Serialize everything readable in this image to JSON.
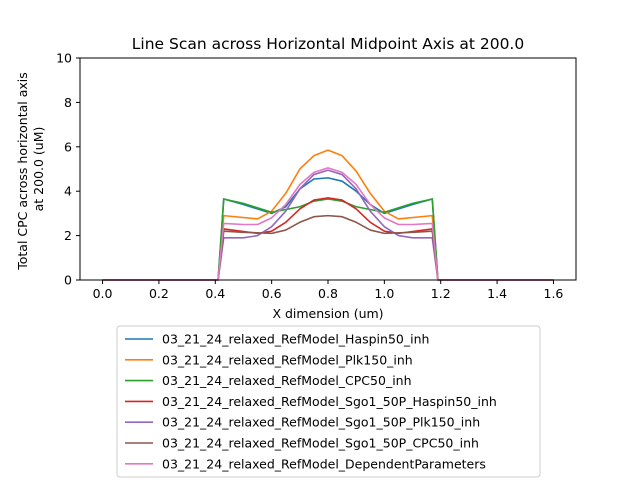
{
  "chart_data": {
    "type": "line",
    "title": "Line Scan across Horizontal Midpoint Axis at 200.0",
    "xlabel": "X dimension (um)",
    "ylabel_lines": [
      "Total CPC across horizontal axis",
      "at 200.0 (uM)"
    ],
    "xlim": [
      -0.08,
      1.68
    ],
    "ylim": [
      0,
      10
    ],
    "xticks": [
      0.0,
      0.2,
      0.4,
      0.6,
      0.8,
      1.0,
      1.2,
      1.4,
      1.6
    ],
    "xtick_labels": [
      "0.0",
      "0.2",
      "0.4",
      "0.6",
      "0.8",
      "1.0",
      "1.2",
      "1.4",
      "1.6"
    ],
    "yticks": [
      0,
      2,
      4,
      6,
      8,
      10
    ],
    "ytick_labels": [
      "0",
      "2",
      "4",
      "6",
      "8",
      "10"
    ],
    "grid": false,
    "legend_placement": "below",
    "series": [
      {
        "name": "03_21_24_relaxed_RefModel_Haspin50_inh",
        "color": "#1f77b4",
        "x": [
          0.0,
          0.41,
          0.43,
          0.5,
          0.6,
          0.65,
          0.7,
          0.75,
          0.8,
          0.85,
          0.9,
          0.95,
          1.0,
          1.1,
          1.17,
          1.19,
          1.6
        ],
        "y": [
          0,
          0,
          3.65,
          3.4,
          3.0,
          3.3,
          4.1,
          4.55,
          4.6,
          4.45,
          4.0,
          3.4,
          3.0,
          3.4,
          3.65,
          0,
          0
        ]
      },
      {
        "name": "03_21_24_relaxed_RefModel_Plk150_inh",
        "color": "#ff7f0e",
        "x": [
          0.0,
          0.41,
          0.43,
          0.55,
          0.6,
          0.65,
          0.7,
          0.75,
          0.8,
          0.85,
          0.9,
          0.95,
          1.0,
          1.05,
          1.17,
          1.19,
          1.6
        ],
        "y": [
          0,
          0,
          2.9,
          2.75,
          3.1,
          3.9,
          5.0,
          5.6,
          5.85,
          5.6,
          4.9,
          3.9,
          3.1,
          2.75,
          2.9,
          0,
          0
        ]
      },
      {
        "name": "03_21_24_relaxed_RefModel_CPC50_inh",
        "color": "#2ca02c",
        "x": [
          0.0,
          0.41,
          0.43,
          0.5,
          0.6,
          0.7,
          0.75,
          0.8,
          0.85,
          0.9,
          1.0,
          1.1,
          1.17,
          1.19,
          1.6
        ],
        "y": [
          0,
          0,
          3.65,
          3.45,
          3.05,
          3.3,
          3.55,
          3.65,
          3.55,
          3.3,
          3.05,
          3.45,
          3.65,
          0,
          0
        ]
      },
      {
        "name": "03_21_24_relaxed_RefModel_Sgo1_50P_Haspin50_inh",
        "color": "#d62728",
        "x": [
          0.0,
          0.41,
          0.43,
          0.55,
          0.6,
          0.65,
          0.7,
          0.75,
          0.8,
          0.85,
          0.9,
          0.95,
          1.0,
          1.05,
          1.17,
          1.19,
          1.6
        ],
        "y": [
          0,
          0,
          2.3,
          2.1,
          2.2,
          2.6,
          3.2,
          3.6,
          3.7,
          3.6,
          3.2,
          2.6,
          2.2,
          2.1,
          2.3,
          0,
          0
        ]
      },
      {
        "name": "03_21_24_relaxed_RefModel_Sgo1_50P_Plk150_inh",
        "color": "#9467bd",
        "x": [
          0.0,
          0.41,
          0.43,
          0.5,
          0.55,
          0.6,
          0.65,
          0.7,
          0.75,
          0.8,
          0.85,
          0.9,
          0.95,
          1.0,
          1.05,
          1.1,
          1.17,
          1.19,
          1.6
        ],
        "y": [
          0,
          0,
          1.9,
          1.9,
          2.0,
          2.4,
          3.1,
          4.1,
          4.75,
          4.95,
          4.75,
          4.1,
          3.1,
          2.4,
          2.0,
          1.9,
          1.9,
          0,
          0
        ]
      },
      {
        "name": "03_21_24_relaxed_RefModel_Sgo1_50P_CPC50_inh",
        "color": "#8c564b",
        "x": [
          0.0,
          0.41,
          0.43,
          0.5,
          0.6,
          0.65,
          0.7,
          0.75,
          0.8,
          0.85,
          0.9,
          0.95,
          1.0,
          1.1,
          1.17,
          1.19,
          1.6
        ],
        "y": [
          0,
          0,
          2.2,
          2.15,
          2.1,
          2.25,
          2.6,
          2.85,
          2.9,
          2.85,
          2.6,
          2.25,
          2.1,
          2.15,
          2.2,
          0,
          0
        ]
      },
      {
        "name": "03_21_24_relaxed_RefModel_DependentParameters",
        "color": "#e377c2",
        "x": [
          0.0,
          0.41,
          0.43,
          0.5,
          0.55,
          0.6,
          0.65,
          0.7,
          0.75,
          0.8,
          0.85,
          0.9,
          0.95,
          1.0,
          1.05,
          1.1,
          1.17,
          1.19,
          1.6
        ],
        "y": [
          0,
          0,
          2.55,
          2.5,
          2.5,
          2.8,
          3.4,
          4.3,
          4.85,
          5.05,
          4.85,
          4.3,
          3.4,
          2.8,
          2.5,
          2.5,
          2.55,
          0,
          0
        ]
      }
    ]
  }
}
